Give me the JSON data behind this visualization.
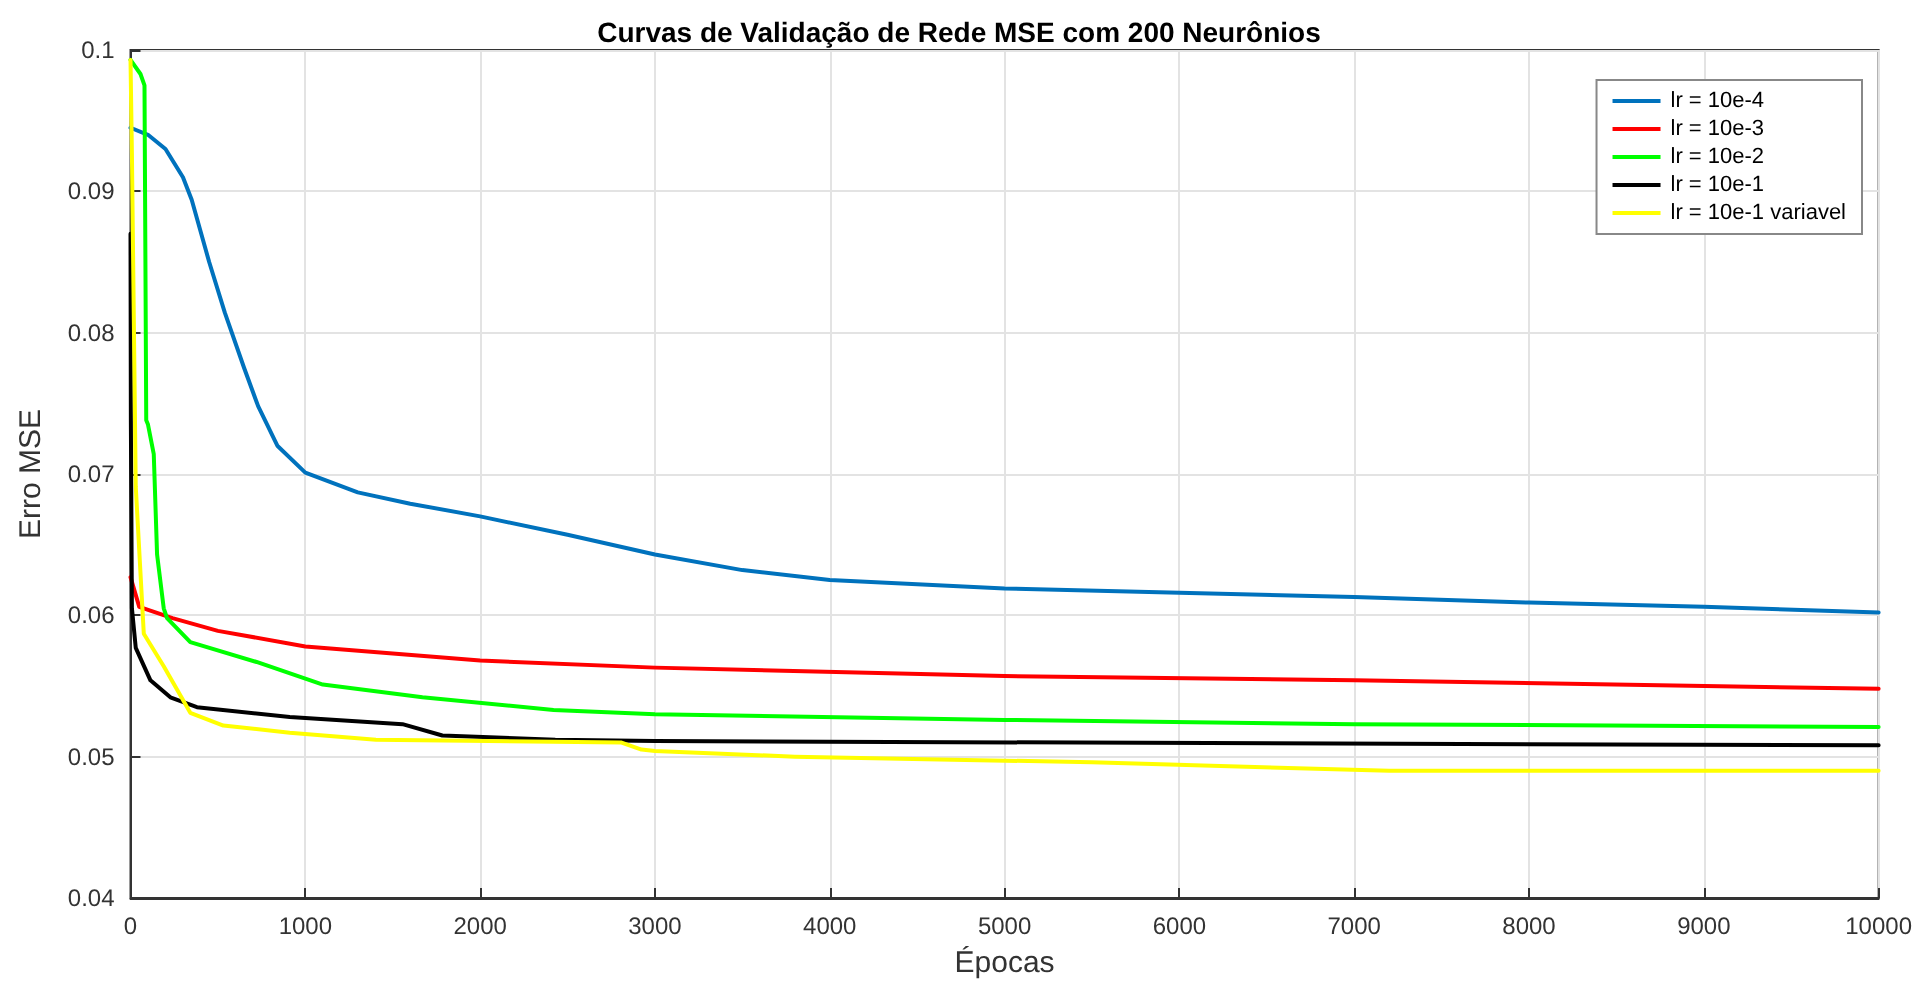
{
  "chart_data": {
    "type": "line",
    "title": "Curvas de Validação de Rede MSE com 200 Neurônios",
    "xlabel": "Épocas",
    "ylabel": "Erro MSE",
    "xlim": [
      0,
      10000
    ],
    "xticks": [
      0,
      1000,
      2000,
      3000,
      4000,
      5000,
      6000,
      7000,
      8000,
      9000,
      10000
    ],
    "ylim": [
      0.04,
      0.1
    ],
    "yticks": [
      0.04,
      0.05,
      0.06,
      0.07,
      0.08,
      0.09,
      0.1
    ],
    "grid": true,
    "legend": "top right",
    "marker": "none",
    "line_style": "solid",
    "series": [
      {
        "name": "lr = 10e-4",
        "color": "#0072bd",
        "x": [
          0,
          100,
          200,
          300,
          350,
          450,
          540,
          650,
          730,
          840,
          1000,
          1300,
          1600,
          2000,
          2500,
          3000,
          3500,
          4000,
          5000,
          6000,
          7000,
          8000,
          9000,
          10000
        ],
        "values": [
          0.0945,
          0.094,
          0.093,
          0.091,
          0.0894,
          0.085,
          0.0814,
          0.0775,
          0.0748,
          0.072,
          0.0701,
          0.0687,
          0.0679,
          0.067,
          0.0657,
          0.0643,
          0.0632,
          0.0625,
          0.0619,
          0.0616,
          0.0613,
          0.0609,
          0.0606,
          0.0602
        ]
      },
      {
        "name": "lr = 10e-3",
        "color": "#ff0000",
        "x": [
          0,
          50,
          240,
          500,
          1000,
          2000,
          3000,
          5000,
          7000,
          10000
        ],
        "values": [
          0.0627,
          0.0606,
          0.0598,
          0.0589,
          0.0578,
          0.0568,
          0.0563,
          0.0557,
          0.0554,
          0.0548
        ]
      },
      {
        "name": "lr = 10e-2",
        "color": "#00ff00",
        "x": [
          0,
          57,
          80,
          90,
          100,
          133,
          152,
          190,
          209,
          342,
          721,
          1100,
          1670,
          2420,
          3000,
          5000,
          7000,
          10000
        ],
        "values": [
          0.0993,
          0.0983,
          0.0975,
          0.0738,
          0.0735,
          0.0714,
          0.0643,
          0.0605,
          0.0598,
          0.0581,
          0.0567,
          0.0551,
          0.0542,
          0.0533,
          0.053,
          0.0526,
          0.0523,
          0.0521
        ]
      },
      {
        "name": "lr = 10e-1",
        "color": "#000000",
        "x": [
          0,
          2,
          8,
          30,
          114,
          228,
          380,
          911,
          1556,
          1784,
          2430,
          3000,
          10000
        ],
        "values": [
          0.087,
          0.0738,
          0.0605,
          0.0577,
          0.0554,
          0.0542,
          0.0535,
          0.0528,
          0.0523,
          0.0515,
          0.0512,
          0.0511,
          0.0508
        ]
      },
      {
        "name": "lr = 10e-1 variavel",
        "color": "#ffff00",
        "x": [
          0,
          8,
          30,
          76,
          190,
          342,
          531,
          911,
          1404,
          2809,
          2923,
          3000,
          3800,
          5500,
          7200,
          10000
        ],
        "values": [
          0.0993,
          0.0927,
          0.0691,
          0.0587,
          0.0564,
          0.0531,
          0.0522,
          0.0517,
          0.0512,
          0.051,
          0.0505,
          0.0504,
          0.05,
          0.0496,
          0.049,
          0.049
        ]
      }
    ]
  }
}
